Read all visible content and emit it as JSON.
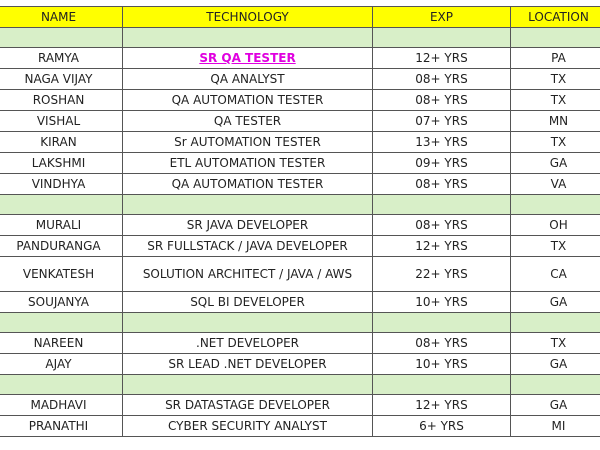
{
  "headers": {
    "name": "NAME",
    "technology": "TECHNOLOGY",
    "exp": "EXP",
    "location": "LOCATION"
  },
  "groups": [
    {
      "rows": [
        {
          "name": "RAMYA",
          "tech": "SR QA TESTER",
          "exp": "12+ YRS",
          "loc": "PA",
          "highlight": true
        },
        {
          "name": "NAGA VIJAY",
          "tech": "QA ANALYST",
          "exp": "08+ YRS",
          "loc": "TX"
        },
        {
          "name": "ROSHAN",
          "tech": "QA AUTOMATION TESTER",
          "exp": "08+ YRS",
          "loc": "TX"
        },
        {
          "name": "VISHAL",
          "tech": "QA TESTER",
          "exp": "07+ YRS",
          "loc": "MN"
        },
        {
          "name": "KIRAN",
          "tech": "Sr AUTOMATION TESTER",
          "exp": "13+ YRS",
          "loc": "TX"
        },
        {
          "name": "LAKSHMI",
          "tech": "ETL AUTOMATION TESTER",
          "exp": "09+ YRS",
          "loc": "GA"
        },
        {
          "name": "VINDHYA",
          "tech": "QA AUTOMATION TESTER",
          "exp": "08+ YRS",
          "loc": "VA"
        }
      ]
    },
    {
      "rows": [
        {
          "name": "MURALI",
          "tech": "SR JAVA DEVELOPER",
          "exp": "08+ YRS",
          "loc": "OH"
        },
        {
          "name": "PANDURANGA",
          "tech": "SR FULLSTACK / JAVA DEVELOPER",
          "exp": "12+ YRS",
          "loc": "TX"
        },
        {
          "name": "VENKATESH",
          "tech": "SOLUTION ARCHITECT / JAVA / AWS",
          "exp": "22+ YRS",
          "loc": "CA",
          "tall": true
        },
        {
          "name": "SOUJANYA",
          "tech": "SQL BI DEVELOPER",
          "exp": "10+ YRS",
          "loc": "GA"
        }
      ]
    },
    {
      "rows": [
        {
          "name": "NAREEN",
          "tech": ".NET DEVELOPER",
          "exp": "08+ YRS",
          "loc": "TX"
        },
        {
          "name": "AJAY",
          "tech": "SR LEAD .NET DEVELOPER",
          "exp": "10+ YRS",
          "loc": "GA"
        }
      ]
    },
    {
      "rows": [
        {
          "name": "MADHAVI",
          "tech": "SR DATASTAGE DEVELOPER",
          "exp": "12+ YRS",
          "loc": "GA"
        },
        {
          "name": "PRANATHI",
          "tech": "CYBER SECURITY ANALYST",
          "exp": "6+ YRS",
          "loc": "MI"
        }
      ]
    }
  ]
}
